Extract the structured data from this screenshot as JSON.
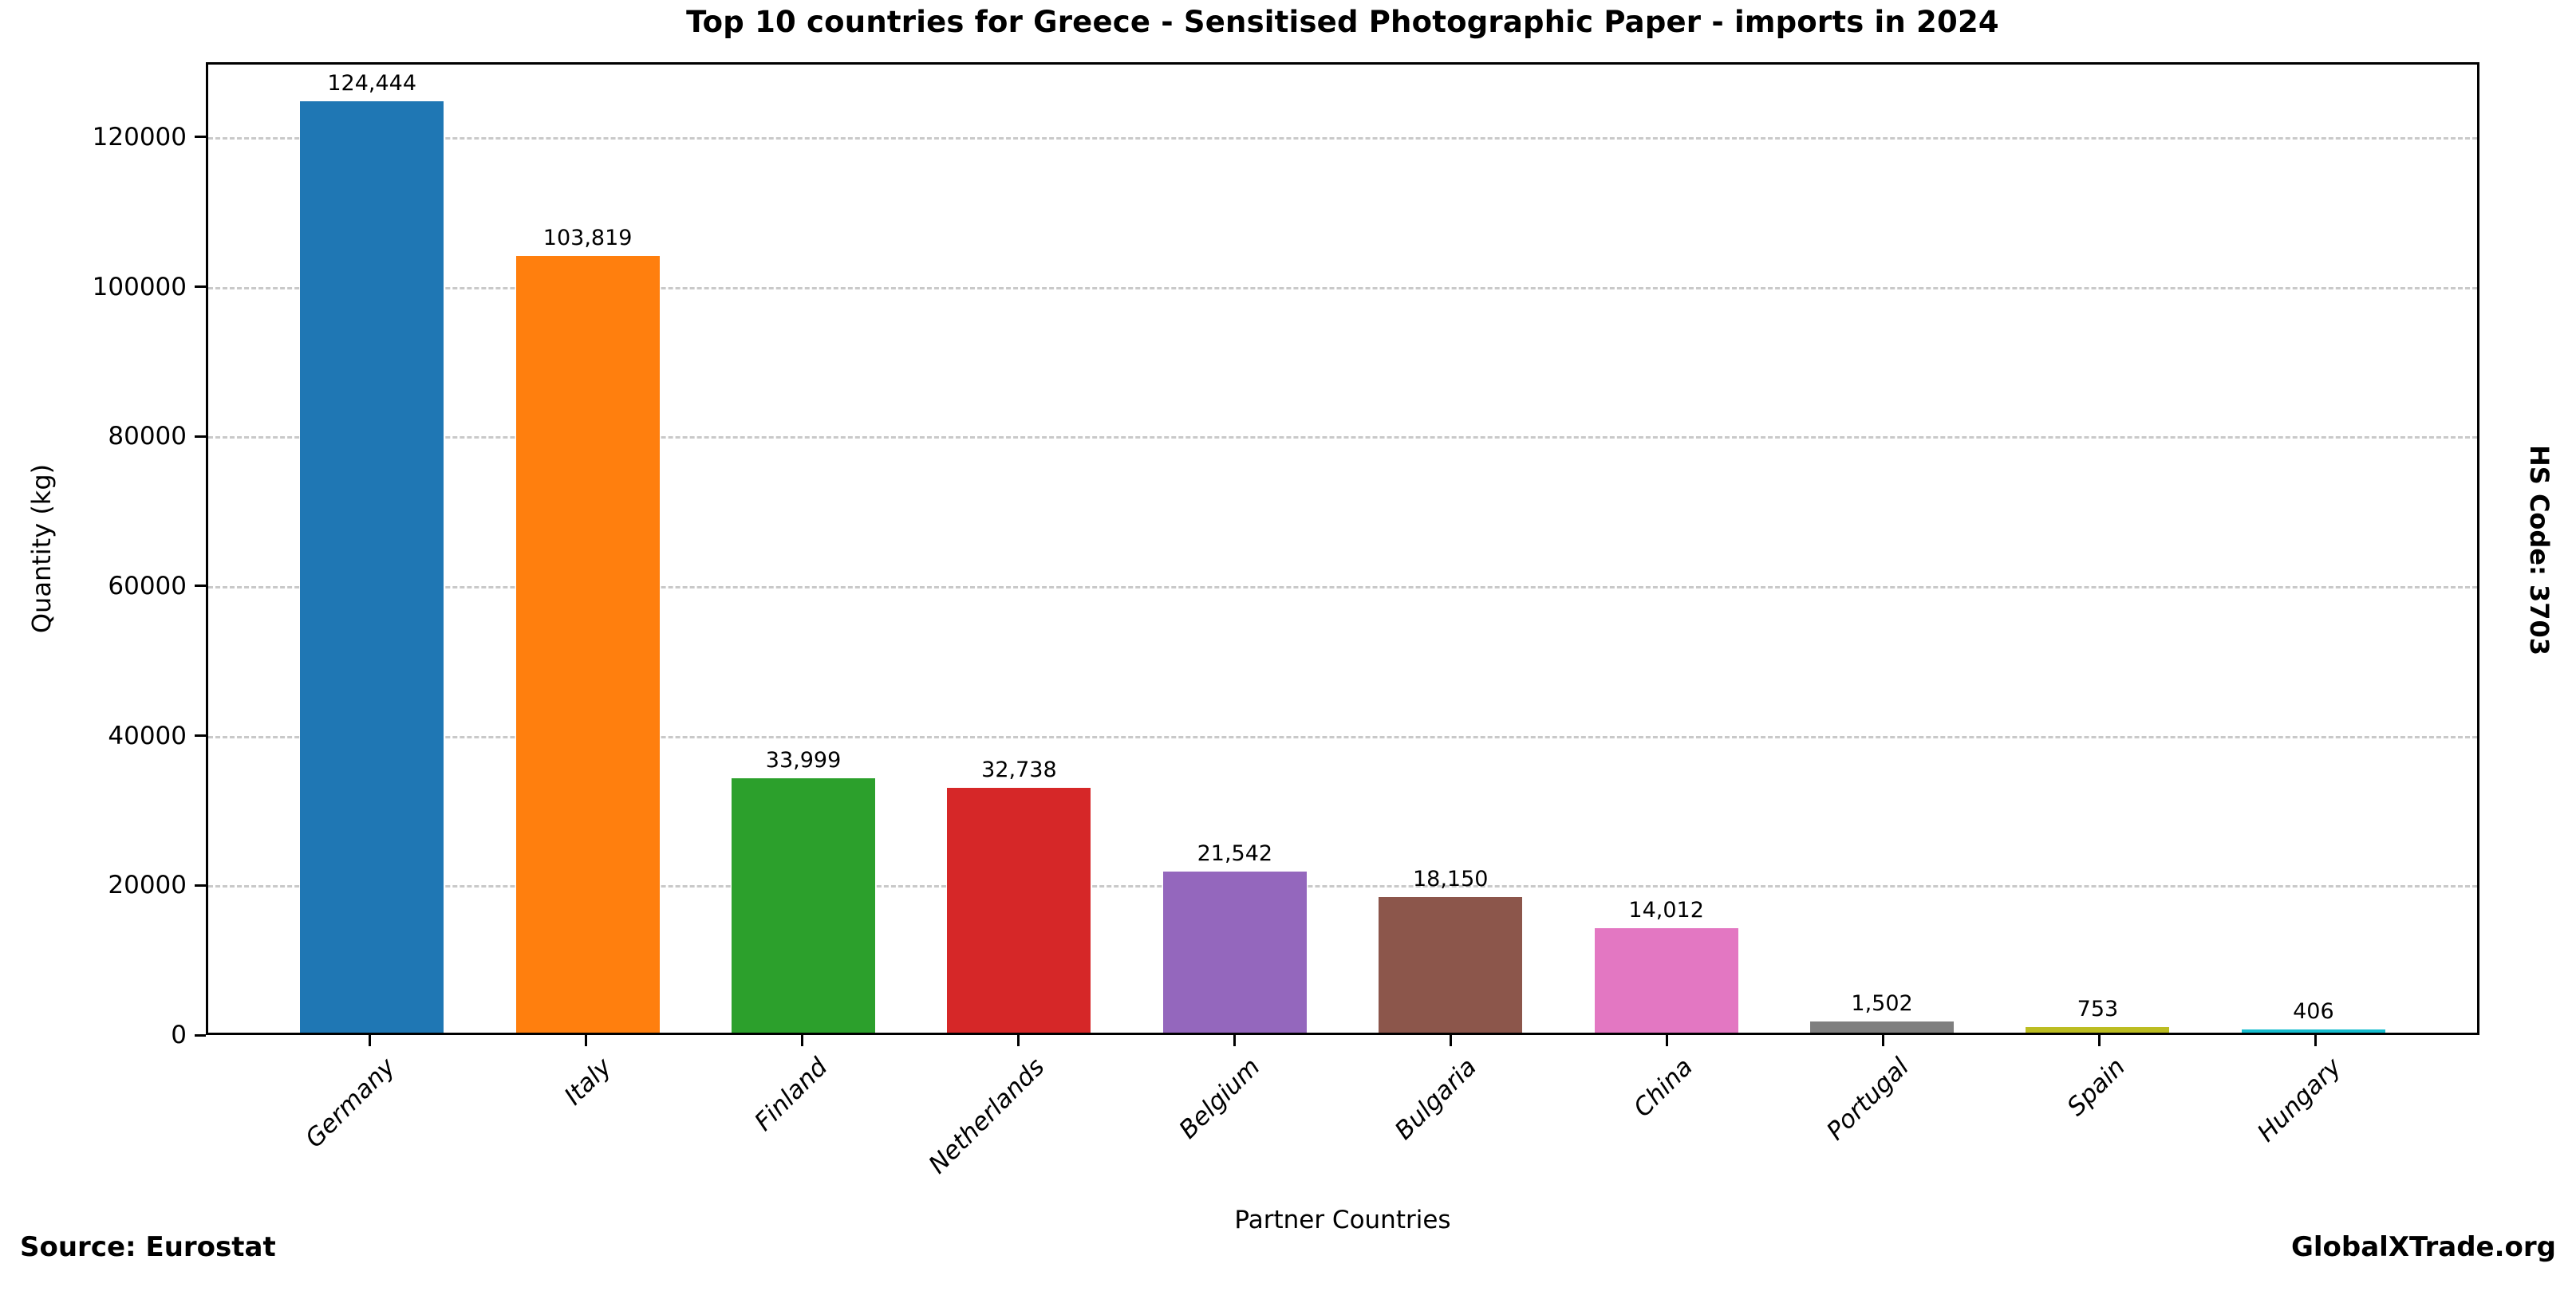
{
  "title": "Top 10 countries for Greece - Sensitised Photographic Paper - imports in 2024",
  "side_label_right": "HS Code: 3703",
  "footer": {
    "source": "Source: Eurostat",
    "brand": "GlobalXTrade.org"
  },
  "colors": {
    "background": "#ffffff",
    "text": "#000000",
    "grid": "#c9c9c9",
    "axis": "#000000"
  },
  "chart_data": {
    "type": "bar",
    "title": "Top 10 countries for Greece - Sensitised Photographic Paper - imports in 2024",
    "xlabel": "Partner Countries",
    "ylabel": "Quantity (kg)",
    "categories": [
      "Germany",
      "Italy",
      "Finland",
      "Netherlands",
      "Belgium",
      "Bulgaria",
      "China",
      "Portugal",
      "Spain",
      "Hungary"
    ],
    "values": [
      124444,
      103819,
      33999,
      32738,
      21542,
      18150,
      14012,
      1502,
      753,
      406
    ],
    "value_labels": [
      "124,444",
      "103,819",
      "33,999",
      "32,738",
      "21,542",
      "18,150",
      "14,012",
      "1,502",
      "753",
      "406"
    ],
    "bar_colors": [
      "#1f77b4",
      "#ff7f0e",
      "#2ca02c",
      "#d62728",
      "#9467bd",
      "#8c564b",
      "#e377c2",
      "#7f7f7f",
      "#bcbd22",
      "#17becf"
    ],
    "yticks": [
      0,
      20000,
      40000,
      60000,
      80000,
      100000,
      120000
    ],
    "ylim": [
      0,
      130000
    ],
    "grid": "horizontal-dashed",
    "legend": "none",
    "xtick_style": "italic, rotated 45deg",
    "bar_label_position": "above bars"
  }
}
